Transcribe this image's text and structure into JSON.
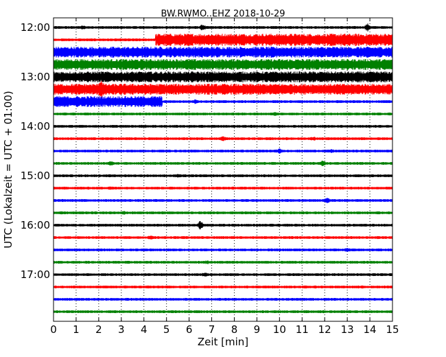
{
  "chart_data": {
    "type": "line",
    "title": "BW.RWMO..EHZ 2018-10-29",
    "xlabel": "Zeit  [min]",
    "ylabel": "UTC (Lokalzeit = UTC + 01:00)",
    "xlim": [
      0,
      15
    ],
    "x_ticks": [
      "0",
      "1",
      "2",
      "3",
      "4",
      "5",
      "6",
      "7",
      "8",
      "9",
      "10",
      "11",
      "12",
      "13",
      "14",
      "15"
    ],
    "y_ticks": [
      "12:00",
      "13:00",
      "14:00",
      "15:00",
      "16:00",
      "17:00"
    ],
    "grid": "vertical dotted",
    "colors": [
      "#000000",
      "#ff0000",
      "#0000ff",
      "#008000"
    ],
    "series": [
      {
        "label": "12:00",
        "color": "#000000",
        "amplitude": 2,
        "events": [
          {
            "x": 1.3,
            "amp": 3
          },
          {
            "x": 6.6,
            "amp": 5
          },
          {
            "x": 13.9,
            "amp": 6
          }
        ]
      },
      {
        "label": "12:15",
        "color": "#ff0000",
        "amplitude": 2,
        "events": [
          {
            "x": 2.0,
            "amp": 2
          }
        ],
        "segments": [
          {
            "from": 4.5,
            "to": 15,
            "amp": 9
          }
        ]
      },
      {
        "label": "12:30",
        "color": "#0000ff",
        "amplitude": 8,
        "events": []
      },
      {
        "label": "12:45",
        "color": "#008000",
        "amplitude": 8,
        "events": [
          {
            "x": 8.2,
            "amp": 9
          }
        ]
      },
      {
        "label": "13:00",
        "color": "#000000",
        "amplitude": 8,
        "events": []
      },
      {
        "label": "13:15",
        "color": "#ff0000",
        "amplitude": 8,
        "events": [
          {
            "x": 2.1,
            "amp": 16
          }
        ]
      },
      {
        "label": "13:30",
        "color": "#0000ff",
        "amplitude": 2,
        "events": [
          {
            "x": 6.3,
            "amp": 4
          }
        ],
        "segments": [
          {
            "from": 0,
            "to": 4.8,
            "amp": 8
          }
        ]
      },
      {
        "label": "13:45",
        "color": "#008000",
        "amplitude": 2,
        "events": [
          {
            "x": 9.8,
            "amp": 3
          }
        ]
      },
      {
        "label": "14:00",
        "color": "#000000",
        "amplitude": 2,
        "events": [
          {
            "x": 4.0,
            "amp": 3
          }
        ]
      },
      {
        "label": "14:15",
        "color": "#ff0000",
        "amplitude": 2,
        "events": [
          {
            "x": 7.5,
            "amp": 4
          },
          {
            "x": 11.5,
            "amp": 3
          }
        ]
      },
      {
        "label": "14:30",
        "color": "#0000ff",
        "amplitude": 2,
        "events": [
          {
            "x": 10.0,
            "amp": 4
          },
          {
            "x": 12.3,
            "amp": 3
          }
        ]
      },
      {
        "label": "14:45",
        "color": "#008000",
        "amplitude": 2,
        "events": [
          {
            "x": 2.5,
            "amp": 4
          },
          {
            "x": 11.9,
            "amp": 4
          }
        ]
      },
      {
        "label": "15:00",
        "color": "#000000",
        "amplitude": 2,
        "events": [
          {
            "x": 5.5,
            "amp": 3
          }
        ]
      },
      {
        "label": "15:15",
        "color": "#ff0000",
        "amplitude": 2,
        "events": [
          {
            "x": 2.5,
            "amp": 3
          }
        ]
      },
      {
        "label": "15:30",
        "color": "#0000ff",
        "amplitude": 2,
        "events": [
          {
            "x": 12.1,
            "amp": 5
          }
        ]
      },
      {
        "label": "15:45",
        "color": "#008000",
        "amplitude": 2,
        "events": [
          {
            "x": 3.1,
            "amp": 3
          }
        ]
      },
      {
        "label": "16:00",
        "color": "#000000",
        "amplitude": 2,
        "events": [
          {
            "x": 6.5,
            "amp": 7
          }
        ]
      },
      {
        "label": "16:15",
        "color": "#ff0000",
        "amplitude": 2,
        "events": [
          {
            "x": 4.3,
            "amp": 3
          }
        ]
      },
      {
        "label": "16:30",
        "color": "#0000ff",
        "amplitude": 2,
        "events": [
          {
            "x": 13.0,
            "amp": 3
          }
        ]
      },
      {
        "label": "16:45",
        "color": "#008000",
        "amplitude": 2,
        "events": [
          {
            "x": 6.8,
            "amp": 3
          }
        ]
      },
      {
        "label": "17:00",
        "color": "#000000",
        "amplitude": 2,
        "events": [
          {
            "x": 6.7,
            "amp": 3
          }
        ]
      },
      {
        "label": "17:15",
        "color": "#ff0000",
        "amplitude": 2,
        "events": []
      },
      {
        "label": "17:30",
        "color": "#0000ff",
        "amplitude": 2,
        "events": []
      },
      {
        "label": "17:45",
        "color": "#008000",
        "amplitude": 2,
        "events": []
      }
    ]
  }
}
